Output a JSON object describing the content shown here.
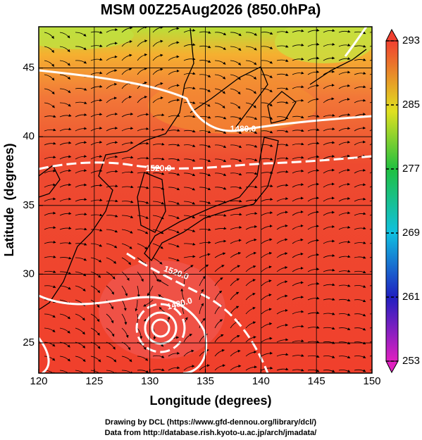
{
  "title": "MSM 00Z25Aug2026 (850.0hPa)",
  "map": {
    "xlabel": "Longitude (degrees)",
    "ylabel": "Latitude  (degrees)",
    "xlim": [
      120,
      150
    ],
    "ylim": [
      22.8,
      48
    ],
    "xticks": [
      120,
      125,
      130,
      135,
      140,
      145,
      150
    ],
    "yticks": [
      25,
      30,
      35,
      40,
      45
    ],
    "contour_labels": [
      "1480.0",
      "1520.0",
      "1520.0",
      "1480.0"
    ]
  },
  "colorbar": {
    "lim": [
      253,
      293
    ],
    "ticks": [
      253,
      261,
      269,
      277,
      285,
      293
    ]
  },
  "footer": [
    "Drawing by DCL (https://www.gfd-dennou.org/library/dcl/)",
    "Data from http://database.rish.kyoto-u.ac.jp/arch/jmadata/"
  ]
}
